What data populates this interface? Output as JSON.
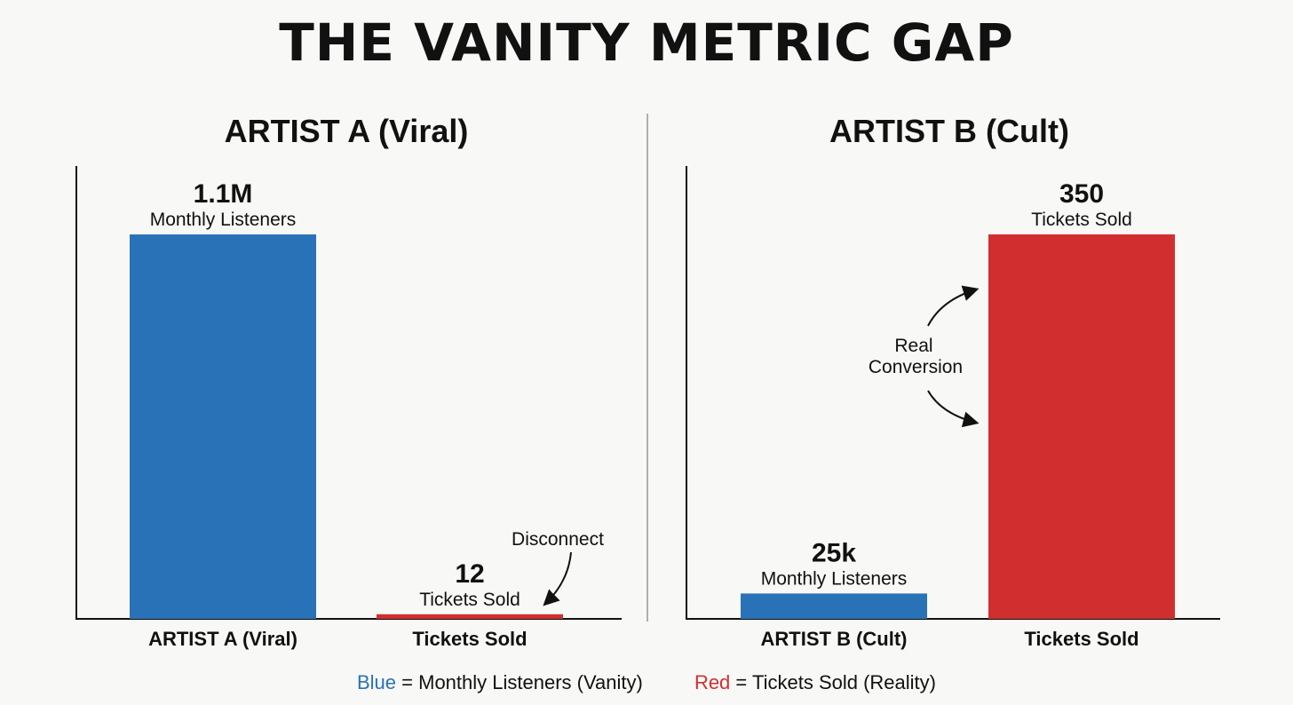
{
  "title": "THE VANITY METRIC GAP",
  "colors": {
    "blue": "#2a72b8",
    "red": "#d12f2f",
    "divider": "#b0b0b0",
    "axis": "#111111"
  },
  "chart_data": [
    {
      "type": "bar",
      "title": "ARTIST A (Viral)",
      "categories": [
        "ARTIST A (Viral)",
        "Tickets Sold"
      ],
      "bars": [
        {
          "category": "ARTIST A (Viral)",
          "value": 1100000,
          "value_label": "1.1M",
          "sub_label": "Monthly Listeners",
          "color": "#2a72b8",
          "relative_height": 1.0
        },
        {
          "category": "Tickets Sold",
          "value": 12,
          "value_label": "12",
          "sub_label": "Tickets Sold",
          "color": "#d12f2f",
          "relative_height": 0.012
        }
      ],
      "annotation": {
        "text": "Disconnect"
      }
    },
    {
      "type": "bar",
      "title": "ARTIST B (Cult)",
      "categories": [
        "ARTIST B (Cult)",
        "Tickets Sold"
      ],
      "bars": [
        {
          "category": "ARTIST B (Cult)",
          "value": 25000,
          "value_label": "25k",
          "sub_label": "Monthly Listeners",
          "color": "#2a72b8",
          "relative_height": 0.066
        },
        {
          "category": "Tickets Sold",
          "value": 350,
          "value_label": "350",
          "sub_label": "Tickets Sold",
          "color": "#d12f2f",
          "relative_height": 1.0
        }
      ],
      "annotation": {
        "lines": [
          "Real",
          "Conversion"
        ]
      }
    }
  ],
  "legend": [
    {
      "key": "Blue",
      "rest": " = Monthly Listeners (Vanity)",
      "color": "#2a72b8"
    },
    {
      "key": "Red",
      "rest": " = Tickets Sold (Reality)",
      "color": "#d12f2f"
    }
  ]
}
